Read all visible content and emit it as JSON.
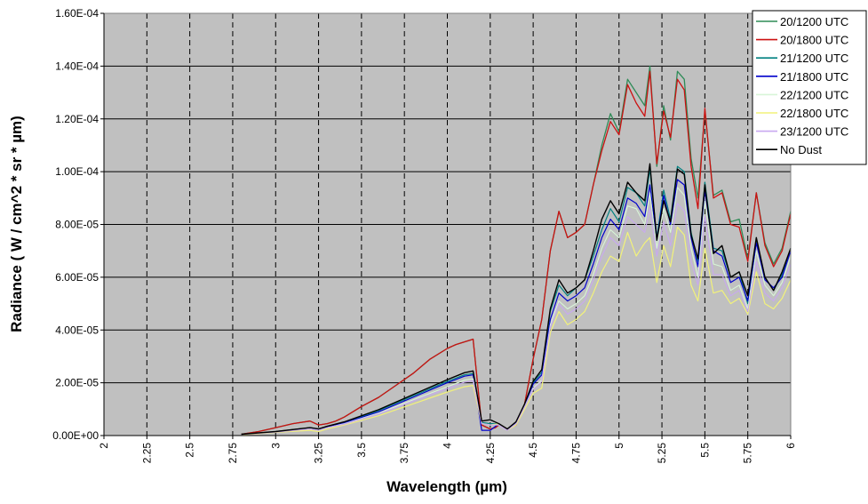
{
  "chart_data": {
    "type": "line",
    "title": "",
    "xlabel": "Wavelength (µm)",
    "ylabel": "Radiance ( W / cm^2 * sr * µm)",
    "xlim": [
      2,
      6
    ],
    "ylim": [
      0,
      0.00016
    ],
    "x_ticks": [
      2,
      2.25,
      2.5,
      2.75,
      3,
      3.25,
      3.5,
      3.75,
      4,
      4.25,
      4.5,
      4.75,
      5,
      5.25,
      5.5,
      5.75,
      6
    ],
    "x_tick_labels": [
      "2",
      "2.25",
      "2.5",
      "2.75",
      "3",
      "3.25",
      "3.5",
      "3.75",
      "4",
      "4.25",
      "4.5",
      "4.75",
      "5",
      "5.25",
      "5.5",
      "5.75",
      "6"
    ],
    "y_ticks": [
      0,
      2e-05,
      4e-05,
      6e-05,
      8e-05,
      0.0001,
      0.00012,
      0.00014,
      0.00016
    ],
    "y_tick_labels": [
      "0.00E+00",
      "2.00E-05",
      "4.00E-05",
      "6.00E-05",
      "8.00E-05",
      "1.00E-04",
      "1.20E-04",
      "1.40E-04",
      "1.60E-04"
    ],
    "grid": {
      "horizontal": "solid",
      "vertical": "dashed"
    },
    "background": "#c0c0c0",
    "legend_position": "top-right",
    "series": [
      {
        "name": "20/1200 UTC",
        "color": "#2e8b57",
        "width": 1.3,
        "x": [
          2.8,
          2.9,
          3.0,
          3.1,
          3.2,
          3.25,
          3.3,
          3.35,
          3.4,
          3.5,
          3.6,
          3.7,
          3.8,
          3.9,
          4.0,
          4.05,
          4.1,
          4.15,
          4.2,
          4.25,
          4.28,
          4.3,
          4.35,
          4.4,
          4.45,
          4.5,
          4.55,
          4.6,
          4.65,
          4.7,
          4.75,
          4.8,
          4.85,
          4.9,
          4.95,
          5.0,
          5.05,
          5.1,
          5.15,
          5.18,
          5.22,
          5.26,
          5.3,
          5.34,
          5.38,
          5.42,
          5.46,
          5.5,
          5.55,
          5.6,
          5.65,
          5.7,
          5.75,
          5.8,
          5.85,
          5.9,
          5.95,
          6.0
        ],
        "y": [
          5e-07,
          1.5e-06,
          3e-06,
          4.5e-06,
          5.5e-06,
          4e-06,
          4.5e-06,
          5.5e-06,
          7e-06,
          1.1e-05,
          1.45e-05,
          1.9e-05,
          2.35e-05,
          2.9e-05,
          3.3e-05,
          3.45e-05,
          3.55e-05,
          3.65e-05,
          4e-06,
          2.5e-06,
          3e-06,
          4e-06,
          2.5e-06,
          4e-06,
          1.2e-05,
          2.9e-05,
          4.4e-05,
          7e-05,
          8.5e-05,
          7.5e-05,
          7.7e-05,
          8e-05,
          9.5e-05,
          0.00011,
          0.000122,
          0.000115,
          0.000135,
          0.00013,
          0.000125,
          0.00014,
          0.000102,
          0.000125,
          0.000112,
          0.000138,
          0.000135,
          0.000105,
          9e-05,
          0.000123,
          9.1e-05,
          9.3e-05,
          8.1e-05,
          8.2e-05,
          6.7e-05,
          9.2e-05,
          7.3e-05,
          6.5e-05,
          7.1e-05,
          8.5e-05
        ]
      },
      {
        "name": "20/1800 UTC",
        "color": "#cc1111",
        "width": 1.3,
        "x": [
          2.8,
          2.9,
          3.0,
          3.1,
          3.2,
          3.25,
          3.3,
          3.35,
          3.4,
          3.5,
          3.6,
          3.7,
          3.8,
          3.9,
          4.0,
          4.05,
          4.1,
          4.15,
          4.2,
          4.25,
          4.28,
          4.3,
          4.35,
          4.4,
          4.45,
          4.5,
          4.55,
          4.6,
          4.65,
          4.7,
          4.75,
          4.8,
          4.85,
          4.9,
          4.95,
          5.0,
          5.05,
          5.1,
          5.15,
          5.18,
          5.22,
          5.26,
          5.3,
          5.34,
          5.38,
          5.42,
          5.46,
          5.5,
          5.55,
          5.6,
          5.65,
          5.7,
          5.75,
          5.8,
          5.85,
          5.9,
          5.95,
          6.0
        ],
        "y": [
          5e-07,
          1.5e-06,
          3e-06,
          4.5e-06,
          5.5e-06,
          4e-06,
          4.5e-06,
          5.5e-06,
          7e-06,
          1.1e-05,
          1.45e-05,
          1.9e-05,
          2.35e-05,
          2.9e-05,
          3.3e-05,
          3.45e-05,
          3.55e-05,
          3.65e-05,
          4e-06,
          2.5e-06,
          3e-06,
          4e-06,
          2.5e-06,
          4e-06,
          1.2e-05,
          2.9e-05,
          4.4e-05,
          7e-05,
          8.5e-05,
          7.5e-05,
          7.7e-05,
          8e-05,
          9.5e-05,
          0.000108,
          0.000119,
          0.000114,
          0.000133,
          0.000126,
          0.000121,
          0.000138,
          0.000103,
          0.000123,
          0.000113,
          0.000135,
          0.000131,
          0.000102,
          8.6e-05,
          0.000124,
          9e-05,
          9.2e-05,
          8e-05,
          7.9e-05,
          6.6e-05,
          9.2e-05,
          7.2e-05,
          6.4e-05,
          7e-05,
          8.4e-05
        ]
      },
      {
        "name": "21/1200 UTC",
        "color": "#008080",
        "width": 1.2,
        "x": [
          2.8,
          3.0,
          3.2,
          3.25,
          3.3,
          3.4,
          3.6,
          3.8,
          4.0,
          4.1,
          4.15,
          4.2,
          4.25,
          4.3,
          4.35,
          4.4,
          4.45,
          4.5,
          4.55,
          4.6,
          4.65,
          4.7,
          4.75,
          4.8,
          4.85,
          4.9,
          4.95,
          5.0,
          5.05,
          5.1,
          5.15,
          5.18,
          5.22,
          5.26,
          5.3,
          5.34,
          5.38,
          5.42,
          5.46,
          5.5,
          5.55,
          5.6,
          5.65,
          5.7,
          5.75,
          5.8,
          5.85,
          5.9,
          5.95,
          6.0
        ],
        "y": [
          4e-07,
          1.5e-06,
          3e-06,
          2.5e-06,
          3.5e-06,
          5e-06,
          9.5e-06,
          1.5e-05,
          2.05e-05,
          2.3e-05,
          2.35e-05,
          5e-06,
          4.5e-06,
          4.5e-06,
          2e-06,
          5e-06,
          1.15e-05,
          2e-05,
          2.4e-05,
          4.7e-05,
          5.7e-05,
          5.3e-05,
          5.6e-05,
          5.9e-05,
          6.8e-05,
          7.8e-05,
          8.6e-05,
          8.1e-05,
          9.4e-05,
          9.2e-05,
          8.7e-05,
          0.000101,
          7.5e-05,
          9.3e-05,
          8.2e-05,
          0.000102,
          0.0001,
          7.7e-05,
          6.6e-05,
          9.6e-05,
          7.1e-05,
          7e-05,
          6e-05,
          6.2e-05,
          5e-05,
          7.4e-05,
          6e-05,
          5.5e-05,
          6.1e-05,
          7.1e-05
        ]
      },
      {
        "name": "21/1800 UTC",
        "color": "#0000cc",
        "width": 1.2,
        "x": [
          2.8,
          3.0,
          3.2,
          3.25,
          3.3,
          3.4,
          3.6,
          3.8,
          4.0,
          4.1,
          4.15,
          4.2,
          4.25,
          4.3,
          4.35,
          4.4,
          4.45,
          4.5,
          4.55,
          4.6,
          4.65,
          4.7,
          4.75,
          4.8,
          4.85,
          4.9,
          4.95,
          5.0,
          5.05,
          5.1,
          5.15,
          5.18,
          5.22,
          5.26,
          5.3,
          5.34,
          5.38,
          5.42,
          5.46,
          5.5,
          5.55,
          5.6,
          5.65,
          5.7,
          5.75,
          5.8,
          5.85,
          5.9,
          5.95,
          6.0
        ],
        "y": [
          4e-07,
          1.4e-06,
          2.8e-06,
          2.3e-06,
          3.3e-06,
          4.8e-06,
          9e-06,
          1.45e-05,
          2e-05,
          2.25e-05,
          2.3e-05,
          2e-06,
          2e-06,
          4.5e-06,
          2e-06,
          5e-06,
          1.15e-05,
          1.95e-05,
          2.3e-05,
          4.4e-05,
          5.4e-05,
          5.1e-05,
          5.3e-05,
          5.6e-05,
          6.5e-05,
          7.5e-05,
          8.2e-05,
          7.8e-05,
          9e-05,
          8.8e-05,
          8.3e-05,
          9.5e-05,
          7.4e-05,
          9.1e-05,
          8e-05,
          9.7e-05,
          9.5e-05,
          7.5e-05,
          6.4e-05,
          9.3e-05,
          7e-05,
          6.8e-05,
          5.8e-05,
          6e-05,
          5.1e-05,
          7.3e-05,
          5.9e-05,
          5.6e-05,
          6e-05,
          7e-05
        ]
      },
      {
        "name": "22/1200 UTC",
        "color": "#d8f5d8",
        "width": 1.1,
        "x": [
          2.8,
          3.0,
          3.2,
          3.25,
          3.3,
          3.4,
          3.6,
          3.8,
          4.0,
          4.1,
          4.15,
          4.2,
          4.25,
          4.3,
          4.35,
          4.4,
          4.45,
          4.5,
          4.55,
          4.6,
          4.65,
          4.7,
          4.75,
          4.8,
          4.85,
          4.9,
          4.95,
          5.0,
          5.05,
          5.1,
          5.15,
          5.18,
          5.22,
          5.26,
          5.3,
          5.34,
          5.38,
          5.42,
          5.46,
          5.5,
          5.55,
          5.6,
          5.65,
          5.7,
          5.75,
          5.8,
          5.85,
          5.9,
          5.95,
          6.0
        ],
        "y": [
          4e-07,
          1.3e-06,
          2.6e-06,
          2.1e-06,
          3e-06,
          4.5e-06,
          8.5e-06,
          1.35e-05,
          1.85e-05,
          2.1e-05,
          2.15e-05,
          4.5e-06,
          4e-06,
          4e-06,
          2e-06,
          4.5e-06,
          1.1e-05,
          1.8e-05,
          2.1e-05,
          4.2e-05,
          5.1e-05,
          4.8e-05,
          5e-05,
          5.3e-05,
          6.1e-05,
          7.1e-05,
          7.8e-05,
          7.5e-05,
          8.7e-05,
          8.6e-05,
          8e-05,
          9.2e-05,
          7.1e-05,
          8.6e-05,
          7.7e-05,
          9.4e-05,
          9.1e-05,
          7.1e-05,
          6e-05,
          8.9e-05,
          6.5e-05,
          6.4e-05,
          5.5e-05,
          5.7e-05,
          4.8e-05,
          7e-05,
          5.7e-05,
          5.3e-05,
          5.8e-05,
          6.8e-05
        ]
      },
      {
        "name": "22/1800 UTC",
        "color": "#f2f27a",
        "width": 1.2,
        "x": [
          2.8,
          3.0,
          3.2,
          3.25,
          3.3,
          3.4,
          3.6,
          3.8,
          4.0,
          4.1,
          4.15,
          4.2,
          4.25,
          4.3,
          4.35,
          4.4,
          4.45,
          4.5,
          4.55,
          4.6,
          4.65,
          4.7,
          4.75,
          4.8,
          4.85,
          4.9,
          4.95,
          5.0,
          5.05,
          5.1,
          5.15,
          5.18,
          5.22,
          5.26,
          5.3,
          5.34,
          5.38,
          5.42,
          5.46,
          5.5,
          5.55,
          5.6,
          5.65,
          5.7,
          5.75,
          5.8,
          5.85,
          5.9,
          5.95,
          6.0
        ],
        "y": [
          3e-07,
          1.2e-06,
          2e-06,
          1.5e-06,
          2.5e-06,
          4e-06,
          7.5e-06,
          1.2e-05,
          1.65e-05,
          1.85e-05,
          1.9e-05,
          4.5e-06,
          4e-06,
          4.5e-06,
          2e-06,
          4e-06,
          1e-05,
          1.6e-05,
          1.8e-05,
          3.9e-05,
          4.7e-05,
          4.2e-05,
          4.4e-05,
          4.7e-05,
          5.4e-05,
          6.2e-05,
          6.8e-05,
          6.6e-05,
          7.7e-05,
          6.8e-05,
          7.3e-05,
          7.5e-05,
          5.8e-05,
          7.2e-05,
          6.4e-05,
          7.9e-05,
          7.6e-05,
          5.7e-05,
          5.1e-05,
          7.1e-05,
          5.4e-05,
          5.5e-05,
          5e-05,
          5.2e-05,
          4.6e-05,
          6.2e-05,
          5e-05,
          4.8e-05,
          5.2e-05,
          5.9e-05
        ]
      },
      {
        "name": "23/1200 UTC",
        "color": "#c8a8f0",
        "width": 1.1,
        "x": [
          2.8,
          3.0,
          3.2,
          3.25,
          3.3,
          3.4,
          3.6,
          3.8,
          4.0,
          4.1,
          4.15,
          4.2,
          4.25,
          4.3,
          4.35,
          4.4,
          4.45,
          4.5,
          4.55,
          4.6,
          4.65,
          4.7,
          4.75,
          4.8,
          4.85,
          4.9,
          4.95,
          5.0,
          5.05,
          5.1,
          5.15,
          5.18,
          5.22,
          5.26,
          5.3,
          5.34,
          5.38,
          5.42,
          5.46,
          5.5,
          5.55,
          5.6,
          5.65,
          5.7,
          5.75,
          5.8,
          5.85,
          5.9,
          5.95,
          6.0
        ],
        "y": [
          4e-07,
          1.3e-06,
          2.5e-06,
          2e-06,
          3e-06,
          4.3e-06,
          8.2e-06,
          1.3e-05,
          1.78e-05,
          2.02e-05,
          2.08e-05,
          4.5e-06,
          4e-06,
          4e-06,
          2e-06,
          4.5e-06,
          1.08e-05,
          1.75e-05,
          2.05e-05,
          4.1e-05,
          5e-05,
          4.6e-05,
          4.8e-05,
          5.1e-05,
          5.9e-05,
          6.8e-05,
          7.5e-05,
          7.2e-05,
          8.3e-05,
          8e-05,
          7.7e-05,
          8.6e-05,
          6.8e-05,
          8.1e-05,
          7.2e-05,
          8.8e-05,
          8.5e-05,
          6.6e-05,
          5.7e-05,
          8.3e-05,
          6.1e-05,
          6.1e-05,
          5.3e-05,
          5.5e-05,
          4.7e-05,
          6.6e-05,
          5.4e-05,
          5.1e-05,
          5.6e-05,
          6.5e-05
        ]
      },
      {
        "name": "No Dust",
        "color": "#000000",
        "width": 1.4,
        "x": [
          2.8,
          3.0,
          3.2,
          3.25,
          3.3,
          3.4,
          3.6,
          3.8,
          4.0,
          4.1,
          4.15,
          4.2,
          4.25,
          4.3,
          4.35,
          4.4,
          4.45,
          4.5,
          4.55,
          4.6,
          4.65,
          4.7,
          4.75,
          4.8,
          4.85,
          4.9,
          4.95,
          5.0,
          5.05,
          5.1,
          5.15,
          5.18,
          5.22,
          5.26,
          5.3,
          5.34,
          5.38,
          5.42,
          5.46,
          5.5,
          5.55,
          5.6,
          5.65,
          5.7,
          5.75,
          5.8,
          5.85,
          5.9,
          5.95,
          6.0
        ],
        "y": [
          5e-07,
          1.5e-06,
          3e-06,
          2.5e-06,
          3.5e-06,
          5.2e-06,
          9.8e-06,
          1.55e-05,
          2.12e-05,
          2.38e-05,
          2.45e-05,
          5.5e-06,
          6e-06,
          4.5e-06,
          2.5e-06,
          5.2e-06,
          1.2e-05,
          2.05e-05,
          2.5e-05,
          4.8e-05,
          5.9e-05,
          5.4e-05,
          5.6e-05,
          5.9e-05,
          7e-05,
          8.2e-05,
          8.9e-05,
          8.4e-05,
          9.6e-05,
          9.2e-05,
          8.9e-05,
          0.000103,
          7.4e-05,
          8.9e-05,
          8.1e-05,
          0.000101,
          9.9e-05,
          7.6e-05,
          6.7e-05,
          9.5e-05,
          6.9e-05,
          7.2e-05,
          6e-05,
          6.2e-05,
          5.3e-05,
          7.5e-05,
          6e-05,
          5.5e-05,
          6.2e-05,
          7.1e-05
        ]
      }
    ]
  }
}
